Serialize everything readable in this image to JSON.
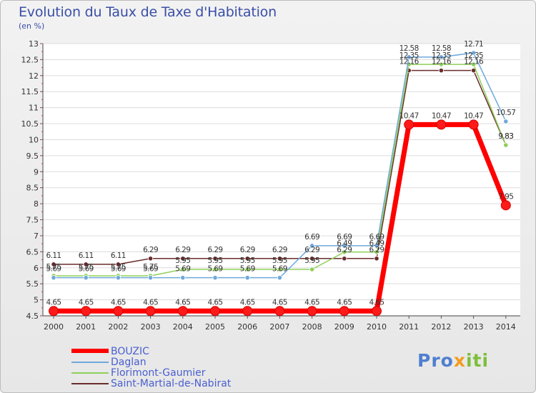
{
  "title": "Evolution du Taux de Taxe d'Habitation",
  "unit": "(en %)",
  "logo": {
    "part1": "Pro",
    "part2": "x",
    "part3": "iti"
  },
  "chart_data": {
    "type": "line",
    "title": "Evolution du Taux de Taxe d'Habitation",
    "ylabel": "(en %)",
    "xlabel": "",
    "ylim": [
      4.5,
      13
    ],
    "yticks": [
      "4.5",
      "5",
      "5.5",
      "6",
      "6.5",
      "7",
      "7.5",
      "8",
      "8.5",
      "9",
      "9.5",
      "10",
      "10.5",
      "11",
      "11.5",
      "12",
      "12.5",
      "13"
    ],
    "categories": [
      "2000",
      "2001",
      "2002",
      "2003",
      "2004",
      "2005",
      "2006",
      "2007",
      "2008",
      "2009",
      "2010",
      "2011",
      "2012",
      "2013",
      "2014"
    ],
    "series": [
      {
        "name": "BOUZIC",
        "color": "#ff0000",
        "values": [
          4.65,
          4.65,
          4.65,
          4.65,
          4.65,
          4.65,
          4.65,
          4.65,
          4.65,
          4.65,
          4.65,
          10.47,
          10.47,
          10.47,
          7.95
        ],
        "labels": [
          "4.65",
          "4.65",
          "4.65",
          "4.65",
          "4.65",
          "4.65",
          "4.65",
          "4.65",
          "4.65",
          "4.65",
          "4.65",
          "10.47",
          "10.47",
          "10.47",
          "7.95"
        ]
      },
      {
        "name": "Daglan",
        "color": "#6fa8dc",
        "values": [
          5.69,
          5.69,
          5.69,
          5.69,
          5.69,
          5.69,
          5.69,
          5.69,
          6.69,
          6.69,
          6.69,
          12.58,
          12.58,
          12.71,
          10.57
        ],
        "labels": [
          "5.69",
          "5.69",
          "5.69",
          "5.69",
          "5.69",
          "5.69",
          "5.69",
          "5.69",
          "6.69",
          "6.69",
          "6.69",
          "12.58",
          "12.58",
          "12.71",
          "10.57"
        ]
      },
      {
        "name": "Florimont-Gaumier",
        "color": "#8fd05a",
        "values": [
          5.75,
          5.75,
          5.75,
          5.75,
          5.95,
          5.95,
          5.95,
          5.95,
          5.95,
          6.49,
          6.49,
          12.35,
          12.35,
          12.35,
          9.83
        ],
        "labels": [
          "5.75",
          "5.75",
          "5.75",
          "5.75",
          "5.95",
          "5.95",
          "5.95",
          "5.95",
          "5.95",
          "6.49",
          "6.49",
          "12.35",
          "12.35",
          "12.35",
          "9.83"
        ]
      },
      {
        "name": "Saint-Martial-de-Nabirat",
        "color": "#6b2c2c",
        "values": [
          6.11,
          6.11,
          6.11,
          6.29,
          6.29,
          6.29,
          6.29,
          6.29,
          6.29,
          6.29,
          6.29,
          12.16,
          12.16,
          12.16,
          9.83
        ],
        "labels": [
          "6.11",
          "6.11",
          "6.11",
          "6.29",
          "6.29",
          "6.29",
          "6.29",
          "6.29",
          "6.29",
          "6.29",
          "6.29",
          "12.16",
          "12.16",
          "12.16",
          "9.83"
        ]
      }
    ],
    "legend_position": "bottom-left"
  }
}
